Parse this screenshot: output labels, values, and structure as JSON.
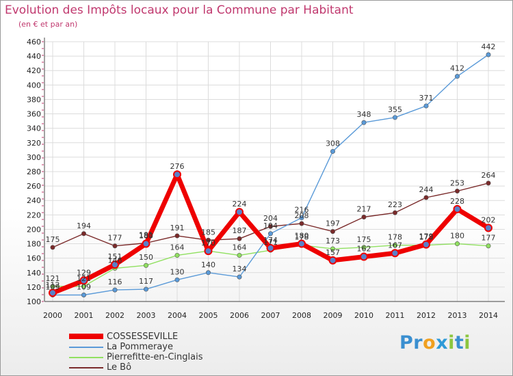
{
  "title": "Evolution des Impôts locaux pour la Commune par Habitant",
  "subtitle": "(en € et par an)",
  "brand": {
    "text": "Proxiti",
    "letters": [
      {
        "ch": "P",
        "color": "#3a8fd0"
      },
      {
        "ch": "r",
        "color": "#3a8fd0"
      },
      {
        "ch": "o",
        "color": "#f0a020"
      },
      {
        "ch": "x",
        "color": "#2e9ad8"
      },
      {
        "ch": "i",
        "color": "#8cc63f"
      },
      {
        "ch": "t",
        "color": "#3a8fd0"
      },
      {
        "ch": "i",
        "color": "#8cc63f"
      }
    ]
  },
  "chart_data": {
    "type": "line",
    "title": "Evolution des Impôts locaux pour la Commune par Habitant",
    "subtitle": "(en € et par an)",
    "xlabel": "",
    "ylabel": "",
    "ylim": [
      100,
      460
    ],
    "yticks": [
      100,
      120,
      140,
      160,
      180,
      200,
      220,
      240,
      260,
      280,
      300,
      320,
      340,
      360,
      380,
      400,
      420,
      440,
      460
    ],
    "grid": true,
    "legend_position": "bottom-left",
    "categories": [
      "2000",
      "2001",
      "2002",
      "2003",
      "2004",
      "2005",
      "2006",
      "2007",
      "2008",
      "2009",
      "2010",
      "2011",
      "2012",
      "2013",
      "2014"
    ],
    "series": [
      {
        "name": "Le Bô",
        "color": "#7a2a2a",
        "values": [
          175,
          194,
          177,
          181,
          191,
          185,
          187,
          204,
          208,
          197,
          217,
          223,
          244,
          253,
          264
        ],
        "labels": [
          "175",
          "194",
          "177",
          "181",
          "191",
          "185",
          "187",
          "204",
          "208",
          "197",
          "217",
          "223",
          "244",
          "253",
          "264"
        ]
      },
      {
        "name": "Pierrefitte-en-Cinglais",
        "color": "#90e060",
        "values": [
          121,
          121,
          146,
          150,
          164,
          170,
          164,
          171,
          178,
          173,
          175,
          178,
          178,
          180,
          177
        ],
        "labels": [
          "121",
          "121",
          "146",
          "150",
          "164",
          "170",
          "164",
          "171",
          "178",
          "173",
          "175",
          "178",
          "178",
          "180",
          "177"
        ]
      },
      {
        "name": "La Pommeraye",
        "color": "#5a9ad8",
        "values": [
          109,
          109,
          116,
          117,
          130,
          140,
          134,
          194,
          216,
          308,
          348,
          355,
          371,
          412,
          442
        ],
        "labels": [
          "109",
          "109",
          "116",
          "117",
          "130",
          "140",
          "134",
          "194",
          "216",
          "308",
          "348",
          "355",
          "371",
          "412",
          "442"
        ]
      },
      {
        "name": "COSSESSEVILLE",
        "color": "#ee0000",
        "values": [
          112,
          129,
          151,
          180,
          276,
          170,
          224,
          174,
          180,
          157,
          162,
          167,
          179,
          228,
          202
        ],
        "labels": [
          "112",
          "129",
          "151",
          "180",
          "276",
          "170",
          "224",
          "174",
          "180",
          "157",
          "162",
          "167",
          "179",
          "228",
          "202"
        ]
      }
    ],
    "legend": [
      {
        "name": "COSSESSEVILLE",
        "color": "#ee0000"
      },
      {
        "name": "La Pommeraye",
        "color": "#5a9ad8"
      },
      {
        "name": "Pierrefitte-en-Cinglais",
        "color": "#90e060"
      },
      {
        "name": "Le Bô",
        "color": "#7a2a2a"
      }
    ]
  }
}
